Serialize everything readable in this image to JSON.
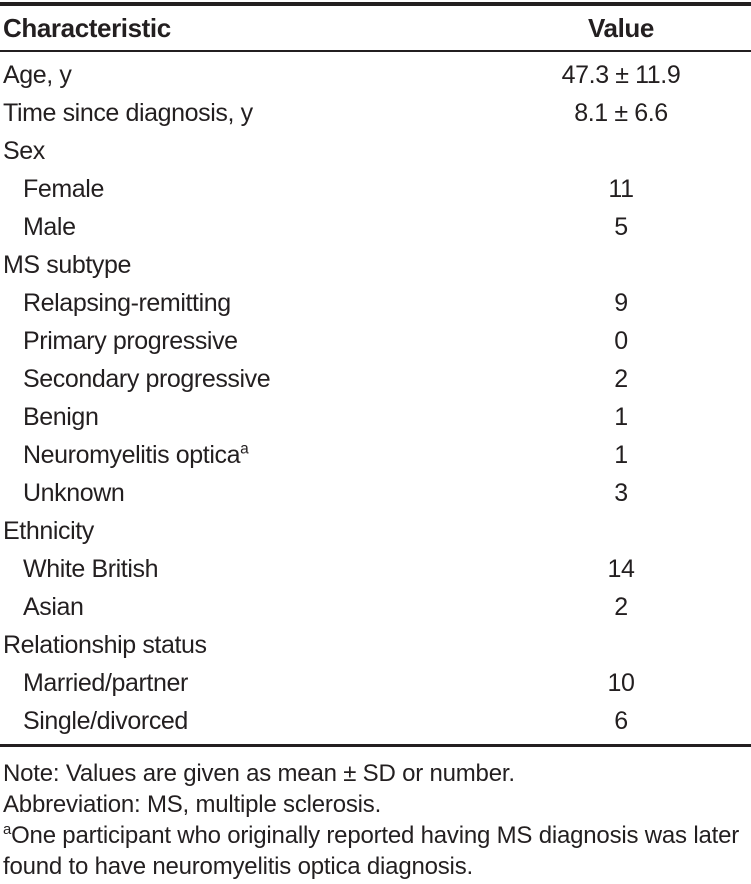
{
  "table": {
    "header": {
      "characteristic": "Characteristic",
      "value": "Value"
    },
    "rows": [
      {
        "label": "Age, y",
        "value": "47.3 ± 11.9",
        "indent": false
      },
      {
        "label": "Time since diagnosis, y",
        "value": "8.1 ± 6.6",
        "indent": false
      },
      {
        "label": "Sex",
        "value": "",
        "indent": false
      },
      {
        "label": "Female",
        "value": "11",
        "indent": true
      },
      {
        "label": "Male",
        "value": "5",
        "indent": true
      },
      {
        "label": "MS subtype",
        "value": "",
        "indent": false
      },
      {
        "label": "Relapsing-remitting",
        "value": "9",
        "indent": true
      },
      {
        "label": "Primary progressive",
        "value": "0",
        "indent": true
      },
      {
        "label": "Secondary progressive",
        "value": "2",
        "indent": true
      },
      {
        "label": "Benign",
        "value": "1",
        "indent": true
      },
      {
        "label": "Neuromyelitis optica",
        "sup": "a",
        "value": "1",
        "indent": true
      },
      {
        "label": "Unknown",
        "value": "3",
        "indent": true
      },
      {
        "label": "Ethnicity",
        "value": "",
        "indent": false
      },
      {
        "label": "White British",
        "value": "14",
        "indent": true
      },
      {
        "label": "Asian",
        "value": "2",
        "indent": true
      },
      {
        "label": "Relationship status",
        "value": "",
        "indent": false
      },
      {
        "label": "Married/partner",
        "value": "10",
        "indent": true
      },
      {
        "label": "Single/divorced",
        "value": "6",
        "indent": true
      }
    ]
  },
  "footnotes": {
    "note": "Note: Values are given as mean ± SD or number.",
    "abbreviation": "Abbreviation: MS, multiple sclerosis.",
    "footnote_a": {
      "marker": "a",
      "text": "One participant who originally reported having MS diagnosis was later found to have neuromyelitis optica diagnosis."
    }
  },
  "colors": {
    "text": "#231f20",
    "rule": "#231f20",
    "background": "#ffffff"
  }
}
